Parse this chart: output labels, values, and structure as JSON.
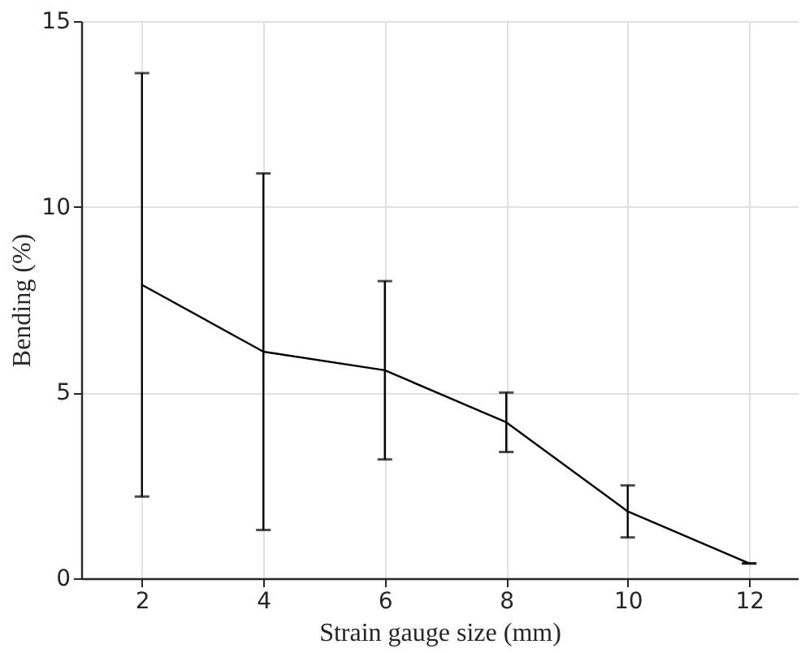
{
  "chart_data": {
    "type": "line",
    "xlabel": "Strain gauge size (mm)",
    "ylabel": "Bending (%)",
    "x": [
      2,
      4,
      6,
      8,
      10,
      12
    ],
    "series": [
      {
        "color": "#000000",
        "values": [
          7.9,
          6.1,
          5.6,
          4.2,
          1.8,
          0.4
        ],
        "errors": [
          [
            2.2,
            13.6
          ],
          [
            1.3,
            10.9
          ],
          [
            3.2,
            8.0
          ],
          [
            3.4,
            5.0
          ],
          [
            1.1,
            2.5
          ],
          [
            0.4,
            0.4
          ]
        ]
      }
    ],
    "xlim": [
      1,
      12.8
    ],
    "ylim": [
      0,
      15
    ],
    "xticks": [
      2,
      4,
      6,
      8,
      10,
      12
    ],
    "yticks": [
      0,
      5,
      10,
      15
    ],
    "grid": true,
    "marker": "none",
    "line_style": "solid"
  }
}
